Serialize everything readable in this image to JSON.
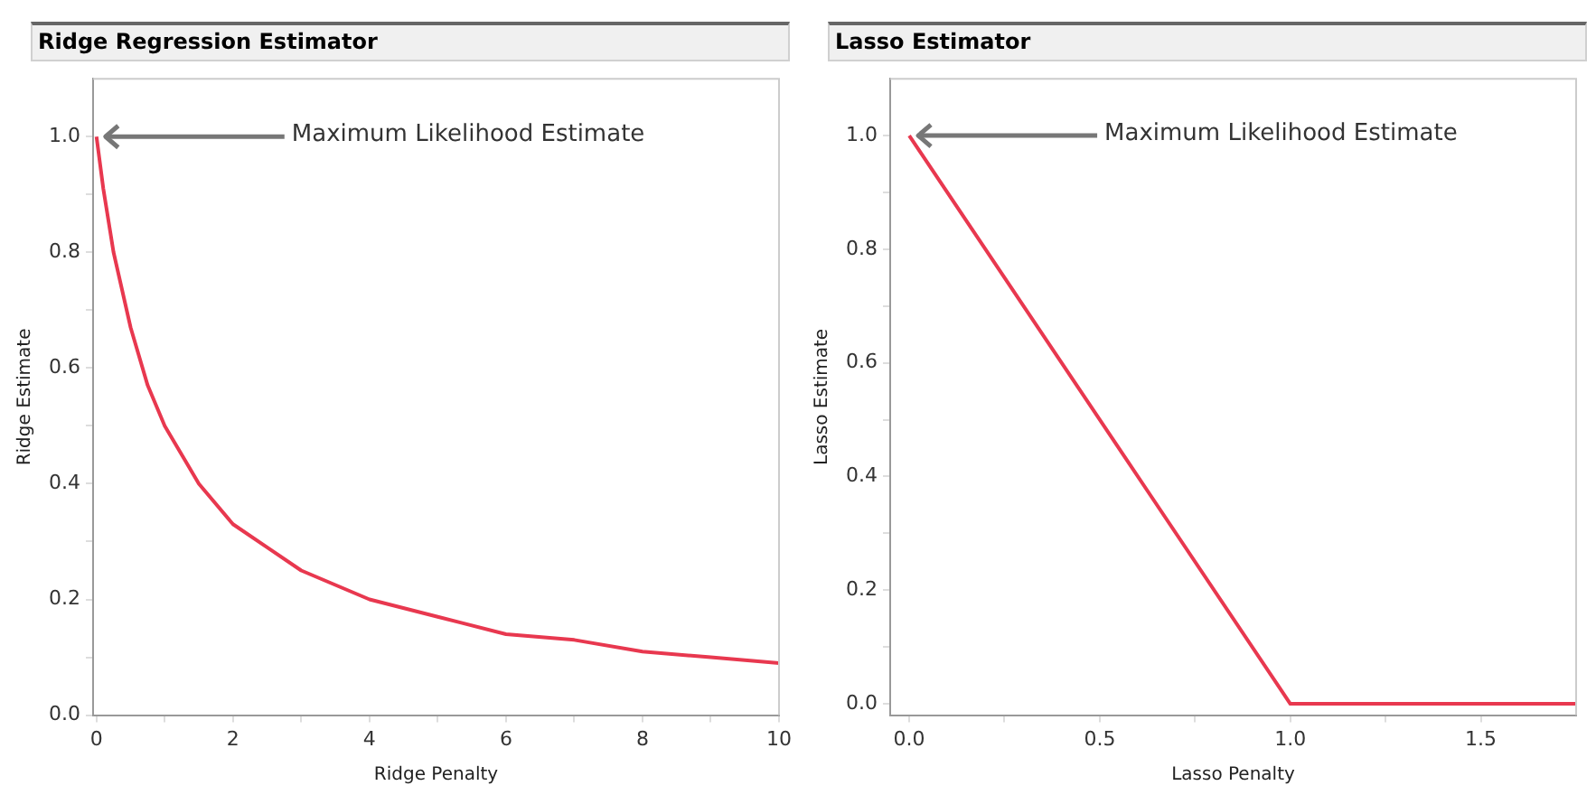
{
  "chart_data": [
    {
      "type": "line",
      "title": "Ridge Regression Estimator",
      "xlabel": "Ridge Penalty",
      "ylabel": "Ridge Estimate",
      "series": [
        {
          "color": "#e8384f",
          "x": [
            0,
            0.1,
            0.25,
            0.5,
            0.75,
            1,
            1.5,
            2,
            2.5,
            3,
            4,
            5,
            6,
            7,
            8,
            9,
            10
          ],
          "values": [
            1.0,
            0.91,
            0.8,
            0.67,
            0.57,
            0.5,
            0.4,
            0.33,
            0.29,
            0.25,
            0.2,
            0.17,
            0.14,
            0.13,
            0.11,
            0.1,
            0.09
          ]
        }
      ],
      "xlim": [
        -0.05,
        10
      ],
      "xticks": [
        0,
        {
          "value": 1,
          "label": null
        },
        2,
        {
          "value": 3,
          "label": null
        },
        4,
        {
          "value": 5,
          "label": null
        },
        6,
        {
          "value": 7,
          "label": null
        },
        8,
        {
          "value": 9,
          "label": null
        },
        10
      ],
      "ylim": [
        0,
        1.1
      ],
      "yticks": [
        {
          "value": 0,
          "label": "0.0"
        },
        {
          "value": 0.1,
          "label": null
        },
        0.2,
        {
          "value": 0.3,
          "label": null
        },
        0.4,
        {
          "value": 0.5,
          "label": null
        },
        0.6,
        {
          "value": 0.7,
          "label": null
        },
        0.8,
        {
          "value": 0.9,
          "label": null
        },
        {
          "value": 1,
          "label": "1.0"
        }
      ],
      "annotations": [
        {
          "text": "Maximum Likelihood Estimate",
          "x": 0,
          "y": 1
        }
      ]
    },
    {
      "type": "line",
      "title": "Lasso Estimator",
      "xlabel": "Lasso Penalty",
      "ylabel": "Lasso Estimate",
      "series": [
        {
          "color": "#e8384f",
          "x": [
            0,
            1,
            1.75
          ],
          "values": [
            1,
            0,
            0
          ]
        }
      ],
      "xlim": [
        -0.05,
        1.75
      ],
      "xticks": [
        {
          "value": 0,
          "label": "0.0"
        },
        {
          "value": 0.25,
          "label": null
        },
        0.5,
        {
          "value": 0.75,
          "label": null
        },
        {
          "value": 1,
          "label": "1.0"
        },
        {
          "value": 1.25,
          "label": null
        },
        1.5
      ],
      "ylim": [
        -0.02,
        1.1
      ],
      "yticks": [
        {
          "value": 0,
          "label": "0.0"
        },
        {
          "value": 0.1,
          "label": null
        },
        0.2,
        {
          "value": 0.3,
          "label": null
        },
        0.4,
        {
          "value": 0.5,
          "label": null
        },
        0.6,
        {
          "value": 0.7,
          "label": null
        },
        0.8,
        {
          "value": 0.9,
          "label": null
        },
        {
          "value": 1,
          "label": "1.0"
        }
      ],
      "annotations": [
        {
          "text": "Maximum Likelihood Estimate",
          "x": 0,
          "y": 1
        }
      ]
    }
  ]
}
